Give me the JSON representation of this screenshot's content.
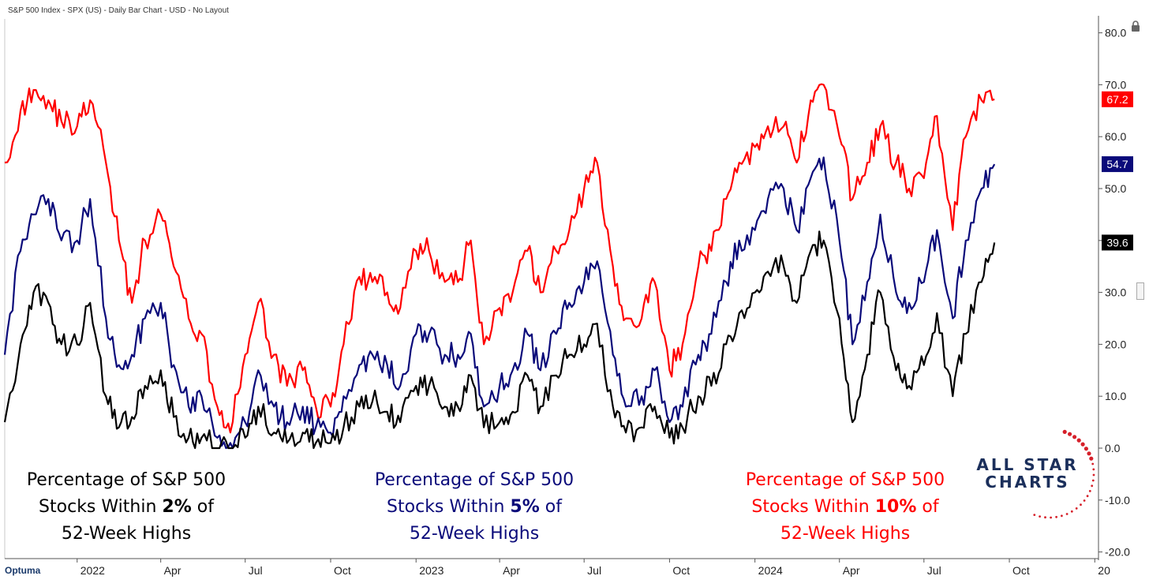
{
  "header": {
    "title": "S&P 500 Index - SPX (US) - Daily Bar Chart - USD - No Layout"
  },
  "logo": {
    "text": "Optuma"
  },
  "brand": {
    "line1": "ALL STAR",
    "line2": "CHARTS"
  },
  "colors": {
    "pct2": "#000000",
    "pct5": "#0a0a7a",
    "pct10": "#ff0000",
    "brand": "#1b2f5b"
  },
  "annotations": [
    {
      "prefix": "Percentage of S&P 500",
      "mid": "Stocks Within ",
      "bold": "2%",
      "suffix": " of",
      "last": "52-Week Highs"
    },
    {
      "prefix": "Percentage of S&P 500",
      "mid": "Stocks Within ",
      "bold": "5%",
      "suffix": " of",
      "last": "52-Week Highs"
    },
    {
      "prefix": "Percentage of S&P 500",
      "mid": "Stocks Within ",
      "bold": "10%",
      "suffix": " of",
      "last": "52-Week Highs"
    }
  ],
  "chart_data": {
    "type": "line",
    "title": "",
    "xlabel": "",
    "ylabel": "",
    "ylim": [
      -20,
      80
    ],
    "yticks": [
      80,
      70,
      60,
      50,
      40,
      30,
      20,
      10,
      0,
      -10,
      -20
    ],
    "ytick_labels": [
      "80.0",
      "70.0",
      "60.0",
      "50.0",
      "40.0",
      "30.0",
      "20.0",
      "10.0",
      "0.0",
      "-10.0",
      "-20.0"
    ],
    "xlim": [
      "2021-10-15",
      "2025-01-05"
    ],
    "xticks": [
      {
        "date": "2022-01-01",
        "label": "2022"
      },
      {
        "date": "2022-04-01",
        "label": "Apr"
      },
      {
        "date": "2022-07-01",
        "label": "Jul"
      },
      {
        "date": "2022-10-01",
        "label": "Oct"
      },
      {
        "date": "2023-01-01",
        "label": "2023"
      },
      {
        "date": "2023-04-01",
        "label": "Apr"
      },
      {
        "date": "2023-07-01",
        "label": "Jul"
      },
      {
        "date": "2023-10-01",
        "label": "Oct"
      },
      {
        "date": "2024-01-01",
        "label": "2024"
      },
      {
        "date": "2024-04-01",
        "label": "Apr"
      },
      {
        "date": "2024-07-01",
        "label": "Jul"
      },
      {
        "date": "2024-10-01",
        "label": "Oct"
      },
      {
        "date": "2025-01-01",
        "label": "20"
      }
    ],
    "x": [
      "2021-10-15",
      "2021-11-01",
      "2021-11-15",
      "2021-12-01",
      "2021-12-15",
      "2022-01-01",
      "2022-01-15",
      "2022-02-01",
      "2022-02-15",
      "2022-03-01",
      "2022-03-15",
      "2022-04-01",
      "2022-04-15",
      "2022-05-01",
      "2022-05-15",
      "2022-06-01",
      "2022-06-15",
      "2022-07-01",
      "2022-07-15",
      "2022-08-01",
      "2022-08-15",
      "2022-09-01",
      "2022-09-15",
      "2022-10-01",
      "2022-10-15",
      "2022-11-01",
      "2022-11-15",
      "2022-12-01",
      "2022-12-15",
      "2023-01-01",
      "2023-01-15",
      "2023-02-01",
      "2023-02-15",
      "2023-03-01",
      "2023-03-15",
      "2023-04-01",
      "2023-04-15",
      "2023-05-01",
      "2023-05-15",
      "2023-06-01",
      "2023-06-15",
      "2023-07-01",
      "2023-07-15",
      "2023-08-01",
      "2023-08-15",
      "2023-09-01",
      "2023-09-15",
      "2023-10-01",
      "2023-10-15",
      "2023-11-01",
      "2023-11-15",
      "2023-12-01",
      "2023-12-15",
      "2024-01-01",
      "2024-01-15",
      "2024-02-01",
      "2024-02-15",
      "2024-03-01",
      "2024-03-15",
      "2024-04-01",
      "2024-04-15",
      "2024-05-01",
      "2024-05-15",
      "2024-06-01",
      "2024-06-15",
      "2024-07-01",
      "2024-07-15",
      "2024-08-01",
      "2024-08-15",
      "2024-09-01",
      "2024-09-15"
    ],
    "series": [
      {
        "key": "pct10",
        "values": [
          55,
          65,
          69,
          67,
          63,
          62,
          67,
          55,
          40,
          28,
          40,
          45,
          35,
          25,
          22,
          8,
          3,
          18,
          28,
          18,
          12,
          15,
          8,
          8,
          20,
          33,
          32,
          30,
          27,
          38,
          38,
          32,
          32,
          40,
          20,
          27,
          30,
          38,
          30,
          38,
          42,
          50,
          55,
          35,
          25,
          25,
          32,
          15,
          20,
          35,
          38,
          48,
          55,
          58,
          62,
          62,
          55,
          67,
          70,
          60,
          48,
          55,
          62,
          55,
          50,
          52,
          64,
          42,
          60,
          67,
          67.2
        ]
      },
      {
        "key": "pct5",
        "values": [
          18,
          38,
          45,
          48,
          40,
          40,
          48,
          25,
          16,
          18,
          25,
          28,
          16,
          8,
          10,
          2,
          1,
          5,
          15,
          8,
          5,
          8,
          4,
          3,
          10,
          16,
          18,
          16,
          12,
          22,
          22,
          18,
          18,
          22,
          8,
          12,
          15,
          22,
          15,
          22,
          28,
          32,
          36,
          18,
          8,
          10,
          15,
          5,
          8,
          18,
          22,
          32,
          40,
          42,
          48,
          50,
          42,
          52,
          56,
          40,
          20,
          32,
          45,
          30,
          28,
          32,
          42,
          25,
          40,
          50,
          54.7
        ]
      },
      {
        "key": "pct2",
        "values": [
          5,
          20,
          30,
          28,
          20,
          20,
          28,
          10,
          4,
          6,
          12,
          15,
          6,
          2,
          2,
          0,
          0,
          2,
          8,
          3,
          1,
          3,
          1,
          1,
          4,
          8,
          9,
          7,
          5,
          12,
          12,
          8,
          8,
          14,
          4,
          5,
          7,
          14,
          8,
          14,
          18,
          20,
          24,
          8,
          3,
          4,
          8,
          2,
          4,
          10,
          12,
          20,
          26,
          30,
          34,
          35,
          28,
          38,
          40,
          25,
          5,
          18,
          30,
          15,
          12,
          16,
          26,
          10,
          22,
          32,
          39.6
        ]
      }
    ],
    "last_values": {
      "pct10": "67.2",
      "pct5": "54.7",
      "pct2": "39.6"
    },
    "grid": false,
    "legend": "none"
  }
}
